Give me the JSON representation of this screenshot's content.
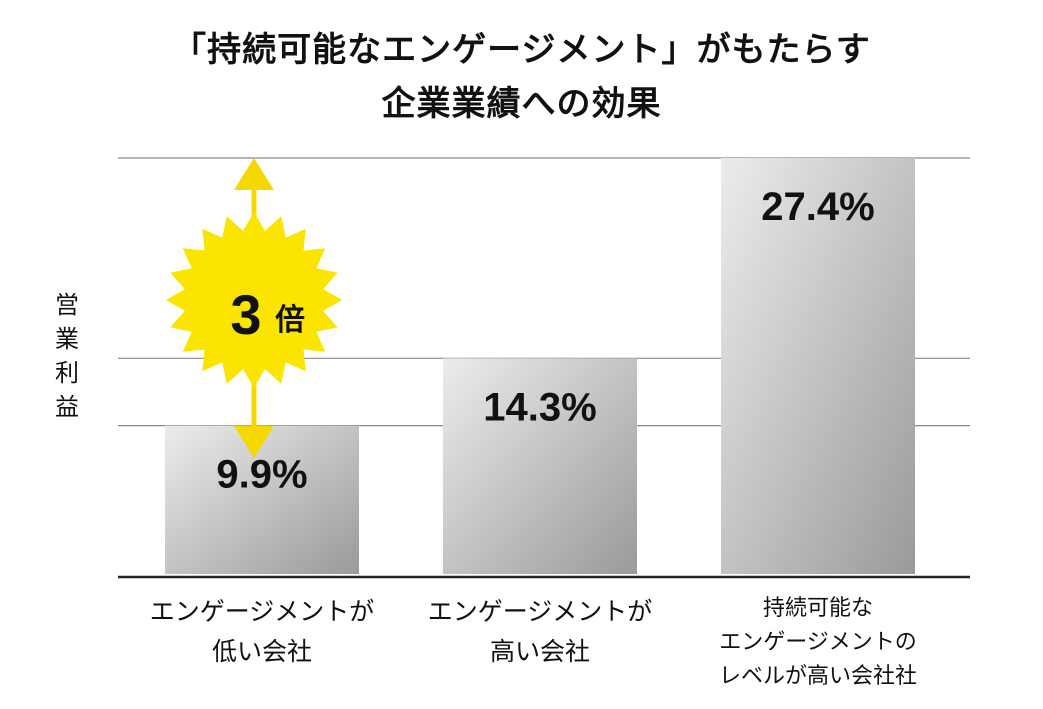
{
  "title": {
    "line1": "「持続可能なエンゲージメント」がもたらす",
    "line2": "企業業績への効果"
  },
  "ylabel": [
    "営",
    "業",
    "利",
    "益"
  ],
  "badge": {
    "number": "3",
    "suffix": "倍"
  },
  "colors": {
    "badge": "#fbe400",
    "arrow": "#f5d800",
    "grid": "#888888",
    "axis": "#222222"
  },
  "chart_data": {
    "type": "bar",
    "categories": [
      [
        "エンゲージメントが",
        "低い会社"
      ],
      [
        "エンゲージメントが",
        "高い会社"
      ],
      [
        "持続可能な",
        "エンゲージメントの",
        "レベルが高い会社社"
      ]
    ],
    "values": [
      9.9,
      14.3,
      27.4
    ],
    "data_labels": [
      "9.9%",
      "14.3%",
      "27.4%"
    ],
    "ylabel": "営業利益",
    "ylim": [
      0,
      27.4
    ],
    "grid": true
  }
}
